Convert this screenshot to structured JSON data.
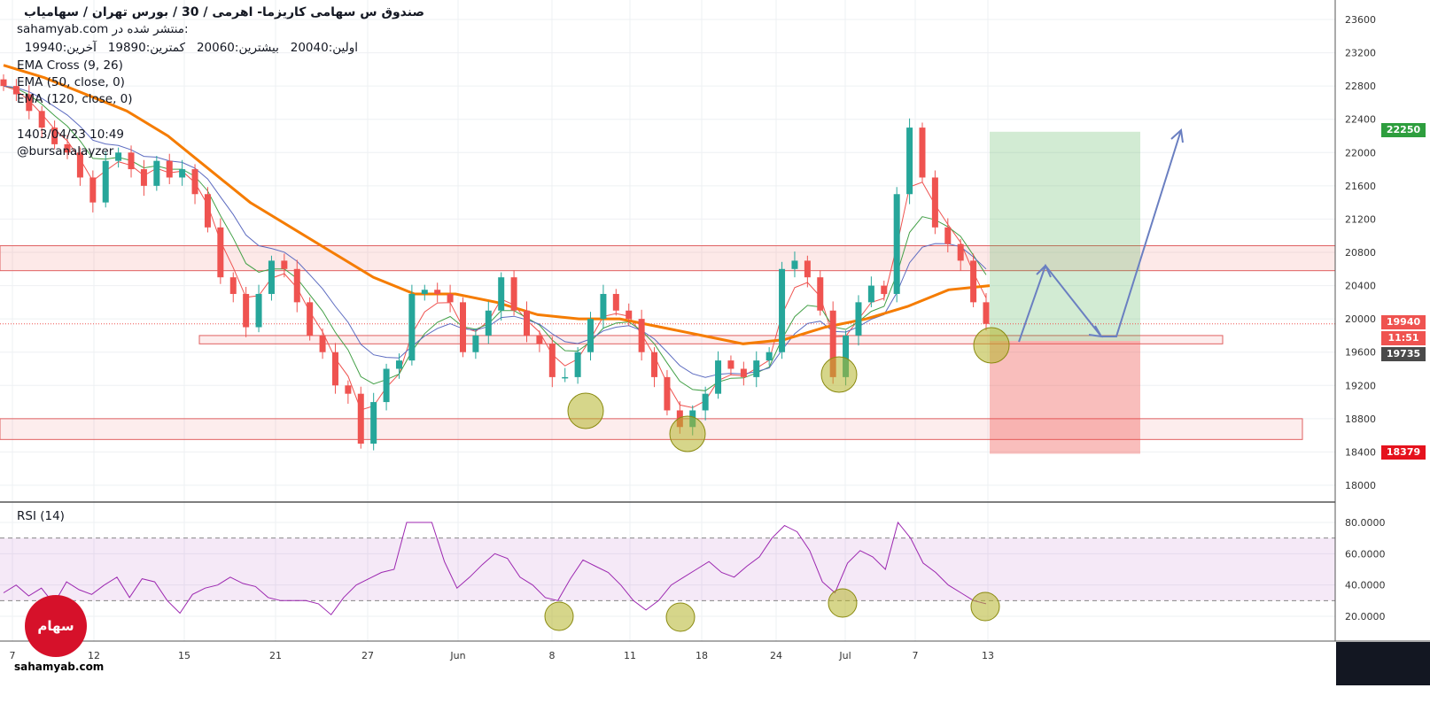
{
  "header": {
    "symbol_line": "صندوق س سهامی کاریزما- اهرمی /  30 /  بورس تهران / سهامیاب",
    "published_label": "منتشر شده در:",
    "published_site": "sahamyab.com",
    "ohlc": {
      "open_label": "اولین:",
      "open": "20040",
      "high_label": "بیشترین:",
      "high": "20060",
      "low_label": "کمترین:",
      "low": "19890",
      "close_label": "آخرین:",
      "close": "19940"
    },
    "indicators": [
      "EMA Cross (9, 26)",
      "EMA (50, close, 0)",
      "EMA (120, close, 0)"
    ],
    "timestamp": "1403/04/23 10:49",
    "author": "@bursanalayzer"
  },
  "price_tags": {
    "target": "22250",
    "last": "19940",
    "timer": "11:51",
    "entry": "19735",
    "stop": "18379"
  },
  "rsi_label": "RSI (14)",
  "watermark": {
    "logo_text": "سهام یاب",
    "site": "sahamyab.com"
  },
  "colors": {
    "up": "#26a69a",
    "down": "#ef5350",
    "ema_fast": "#ef5350",
    "ema_slow": "#43a047",
    "ema50": "#5c6bc0",
    "ema120": "#f57c00",
    "rsi": "#9c27b0",
    "circle": "#b5b52a",
    "arrow": "#6a7fc1"
  },
  "chart_data": [
    {
      "type": "candlestick",
      "title": "",
      "x_ticks": [
        "7",
        "12",
        "15",
        "21",
        "27",
        "Jun",
        "8",
        "11",
        "18",
        "24",
        "Jul",
        "7",
        "13"
      ],
      "y_ticks": [
        18000,
        18400,
        18800,
        19200,
        19600,
        20000,
        20400,
        20800,
        21200,
        21600,
        22000,
        22400,
        22800,
        23200,
        23600
      ],
      "ylim": [
        17600,
        23800
      ],
      "grid": true,
      "close_series_approx": [
        22800,
        22700,
        22500,
        22300,
        22100,
        22000,
        21700,
        21400,
        21900,
        22000,
        21800,
        21600,
        21900,
        21700,
        21800,
        21500,
        21100,
        20500,
        20300,
        19900,
        20300,
        20700,
        20600,
        20200,
        19800,
        19600,
        19200,
        19100,
        18500,
        19000,
        19400,
        19500,
        20300,
        20350,
        20300,
        20200,
        19600,
        19800,
        20100,
        20500,
        20100,
        19800,
        19700,
        19300,
        19300,
        19600,
        20000,
        20300,
        20100,
        20000,
        19600,
        19300,
        18900,
        18700,
        18900,
        19100,
        19500,
        19400,
        19300,
        19500,
        19600,
        20600,
        20700,
        20500,
        20100,
        19300,
        19800,
        20200,
        20400,
        20300,
        21500,
        22300,
        21700,
        21100,
        20900,
        20700,
        20200,
        19940
      ],
      "ema120_approx": [
        23050,
        22900,
        22700,
        22500,
        22200,
        21800,
        21400,
        21100,
        20800,
        20500,
        20300,
        20300,
        20200,
        20050,
        20000,
        20000,
        19900,
        19800,
        19700,
        19750,
        19900,
        20000,
        20150,
        20350,
        20400
      ],
      "zones": {
        "resistance": [
          20580,
          20880
        ],
        "support_entry": [
          19700,
          19800
        ],
        "support_low": [
          18550,
          18800
        ]
      },
      "position": {
        "target": 22250,
        "entry": 19735,
        "stop": 18379
      },
      "last_price": 19940
    },
    {
      "type": "line",
      "title": "RSI (14)",
      "y_ticks": [
        20.0,
        40.0,
        60.0,
        80.0
      ],
      "ylim": [
        10,
        88
      ],
      "bands": [
        30,
        70
      ],
      "series": [
        {
          "values": [
            35,
            40,
            33,
            38,
            28,
            42,
            37,
            34,
            40,
            45,
            32,
            44,
            42,
            30,
            22,
            34,
            38,
            40,
            45,
            41,
            39,
            32,
            30,
            30,
            30,
            28,
            21,
            32,
            40,
            44,
            48,
            50,
            80,
            80,
            80,
            55,
            38,
            45,
            53,
            60,
            57,
            45,
            40,
            32,
            30,
            44,
            56,
            52,
            48,
            40,
            30,
            24,
            30,
            40,
            45,
            50,
            55,
            48,
            45,
            52,
            58,
            70,
            78,
            74,
            62,
            42,
            35,
            54,
            62,
            58,
            50,
            80,
            70,
            54,
            48,
            40,
            35,
            30,
            28
          ]
        }
      ]
    }
  ]
}
